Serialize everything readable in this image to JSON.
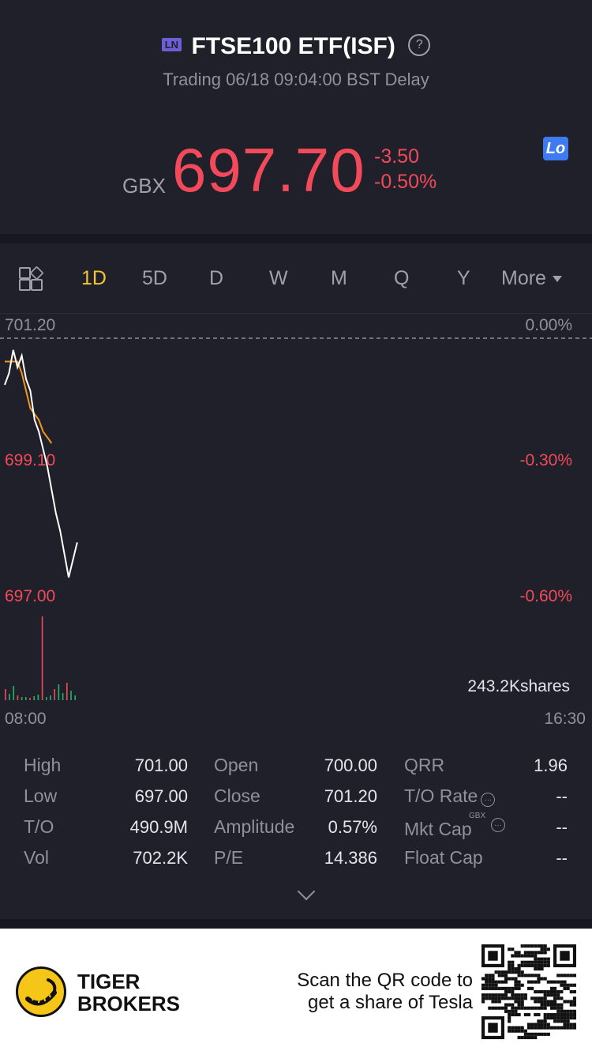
{
  "header": {
    "exchange_badge": "LN",
    "title": "FTSE100 ETF(ISF)",
    "status": "Trading 06/18 09:04:00 BST Delay",
    "currency": "GBX",
    "price": "697.70",
    "change": "-3.50",
    "change_pct": "-0.50%",
    "lo_badge": "Lo",
    "help_icon": "question-circle-icon"
  },
  "tabs": {
    "items": [
      "1D",
      "5D",
      "D",
      "W",
      "M",
      "Q",
      "Y"
    ],
    "active": "1D",
    "more_label": "More",
    "grid_icon": "grid-icon"
  },
  "chart": {
    "y_top_label": "701.20",
    "y_mid_label": "699.10",
    "y_bottom_label": "697.00",
    "pct_top_label": "0.00%",
    "pct_mid_label": "-0.30%",
    "pct_bottom_label": "-0.60%",
    "volume_label": "243.2Kshares",
    "x_start_label": "08:00",
    "x_end_label": "16:30"
  },
  "chart_data": {
    "type": "line",
    "ylim": [
      697.0,
      701.2
    ],
    "series": [
      {
        "values": [
          700.4,
          700.6,
          701.0,
          700.7,
          700.9,
          700.5,
          700.3,
          699.8,
          699.6,
          699.3,
          699.0,
          698.6,
          698.2,
          697.9,
          697.5,
          697.1,
          697.4,
          697.7
        ]
      },
      {
        "values": [
          700.8,
          700.8,
          700.8,
          700.8,
          700.6,
          700.3,
          700.0,
          699.9,
          699.8,
          699.6,
          699.5,
          699.4
        ]
      }
    ],
    "colors": {
      "price": "#ffffff",
      "average": "#f5941f",
      "up": "#27b36a",
      "down": "#f24a5a",
      "ref": "#8f919b"
    }
  },
  "stats": {
    "high_label": "High",
    "high": "701.00",
    "low_label": "Low",
    "low": "697.00",
    "to_label": "T/O",
    "to": "490.9M",
    "vol_label": "Vol",
    "vol": "702.2K",
    "open_label": "Open",
    "open": "700.00",
    "close_label": "Close",
    "close": "701.20",
    "amp_label": "Amplitude",
    "amp": "0.57%",
    "pe_label": "P/E",
    "pe": "14.386",
    "qrr_label": "QRR",
    "qrr": "1.96",
    "tor_label": "T/O Rate",
    "tor": "--",
    "mcap_label": "Mkt Cap",
    "mcap_unit": "GBX",
    "mcap": "--",
    "fcap_label": "Float Cap",
    "fcap": "--"
  },
  "footer": {
    "brand_line1": "TIGER",
    "brand_line2": "BROKERS",
    "promo_line1": "Scan the QR code to",
    "promo_line2": "get a share of Tesla"
  }
}
